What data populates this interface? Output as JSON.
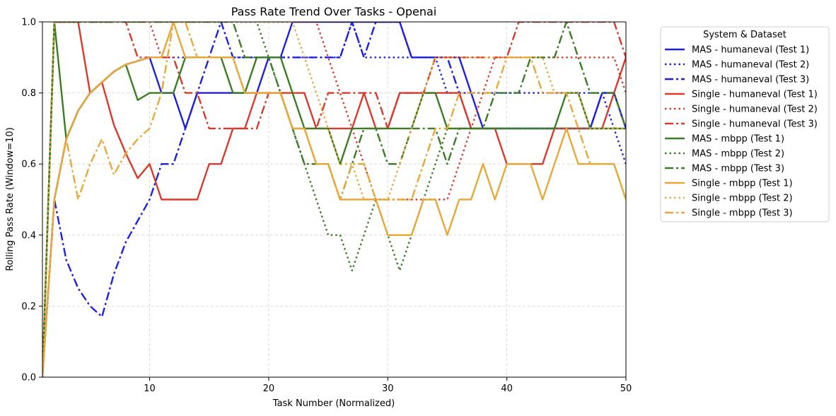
{
  "chart_data": {
    "type": "line",
    "title": "Pass Rate Trend Over Tasks - Openai",
    "xlabel": "Task Number (Normalized)",
    "ylabel": "Rolling Pass Rate (Window=10)",
    "xlim": [
      1,
      50
    ],
    "ylim": [
      0,
      1
    ],
    "xticks": [
      10,
      20,
      30,
      40,
      50
    ],
    "yticks": [
      0.0,
      0.2,
      0.4,
      0.6,
      0.8,
      1.0
    ],
    "ytick_labels": [
      "0.0",
      "0.2",
      "0.4",
      "0.6",
      "0.8",
      "1.0"
    ],
    "grid": true,
    "legend": {
      "title": "System & Dataset",
      "placement": "outside-right-top"
    },
    "x": [
      1,
      2,
      3,
      4,
      5,
      6,
      7,
      8,
      9,
      10,
      11,
      12,
      13,
      14,
      15,
      16,
      17,
      18,
      19,
      20,
      21,
      22,
      23,
      24,
      25,
      26,
      27,
      28,
      29,
      30,
      31,
      32,
      33,
      34,
      35,
      36,
      37,
      38,
      39,
      40,
      41,
      42,
      43,
      44,
      45,
      46,
      47,
      48,
      49,
      50
    ],
    "series": [
      {
        "name": "MAS - humaneval (Test 1)",
        "color": "#1f1fe0",
        "dash": "solid",
        "values": [
          0.0,
          0.5,
          0.67,
          0.75,
          0.8,
          0.83,
          0.86,
          0.88,
          0.89,
          0.9,
          0.8,
          0.8,
          0.7,
          0.8,
          0.8,
          0.8,
          0.8,
          0.8,
          0.8,
          0.9,
          0.9,
          1.0,
          1.0,
          1.0,
          1.0,
          1.0,
          1.0,
          1.0,
          1.0,
          1.0,
          1.0,
          0.9,
          0.9,
          0.9,
          0.9,
          0.9,
          0.8,
          0.7,
          0.7,
          0.7,
          0.7,
          0.7,
          0.7,
          0.7,
          0.7,
          0.7,
          0.7,
          0.8,
          0.8,
          0.7
        ]
      },
      {
        "name": "MAS - humaneval (Test 2)",
        "color": "#1f1fe0",
        "dash": "dot",
        "values": [
          0.0,
          0.5,
          0.67,
          0.75,
          0.8,
          0.83,
          0.86,
          0.88,
          0.89,
          0.9,
          0.9,
          0.9,
          0.9,
          0.9,
          0.9,
          0.9,
          0.9,
          0.9,
          0.9,
          0.9,
          0.9,
          0.9,
          0.9,
          0.9,
          0.9,
          0.9,
          1.0,
          0.9,
          0.9,
          0.9,
          0.9,
          0.9,
          0.9,
          0.9,
          0.8,
          0.8,
          0.8,
          0.8,
          0.8,
          0.8,
          0.8,
          0.8,
          0.8,
          0.8,
          0.8,
          0.8,
          0.8,
          0.8,
          0.7,
          0.6
        ]
      },
      {
        "name": "MAS - humaneval (Test 3)",
        "color": "#1f1fe0",
        "dash": "dashdot",
        "values": [
          0.0,
          0.5,
          0.33,
          0.25,
          0.2,
          0.17,
          0.29,
          0.38,
          0.44,
          0.5,
          0.6,
          0.6,
          0.7,
          0.8,
          0.9,
          1.0,
          0.9,
          0.9,
          0.9,
          0.9,
          0.9,
          0.9,
          0.9,
          0.9,
          0.9,
          0.9,
          1.0,
          0.9,
          1.0,
          1.0,
          1.0,
          0.9,
          0.9,
          0.9,
          0.9,
          0.8,
          0.7,
          0.7,
          0.7,
          0.7,
          0.7,
          0.7,
          0.7,
          0.7,
          0.7,
          0.7,
          0.7,
          0.8,
          0.8,
          0.7
        ]
      },
      {
        "name": "Single - humaneval (Test 1)",
        "color": "#d93a2b",
        "dash": "solid",
        "values": [
          0.0,
          1.0,
          1.0,
          1.0,
          0.8,
          0.83,
          0.71,
          0.63,
          0.56,
          0.6,
          0.5,
          0.5,
          0.5,
          0.5,
          0.6,
          0.6,
          0.7,
          0.7,
          0.8,
          0.8,
          0.8,
          0.8,
          0.8,
          0.7,
          0.7,
          0.7,
          0.7,
          0.8,
          0.7,
          0.7,
          0.8,
          0.8,
          0.8,
          0.8,
          0.8,
          0.8,
          0.7,
          0.7,
          0.7,
          0.6,
          0.6,
          0.6,
          0.6,
          0.7,
          0.7,
          0.7,
          0.7,
          0.7,
          0.8,
          0.9
        ]
      },
      {
        "name": "Single - humaneval (Test 2)",
        "color": "#d93a2b",
        "dash": "dot",
        "values": [
          0.0,
          1.0,
          1.0,
          1.0,
          1.0,
          1.0,
          1.0,
          1.0,
          1.0,
          1.0,
          0.9,
          1.0,
          1.0,
          1.0,
          1.0,
          1.0,
          1.0,
          1.0,
          1.0,
          1.0,
          1.0,
          1.0,
          1.0,
          1.0,
          0.9,
          0.8,
          0.7,
          0.6,
          0.5,
          0.5,
          0.5,
          0.5,
          0.5,
          0.5,
          0.5,
          0.6,
          0.7,
          0.8,
          0.9,
          0.9,
          0.9,
          0.9,
          0.9,
          0.9,
          0.9,
          0.9,
          0.9,
          0.9,
          0.9,
          0.8
        ]
      },
      {
        "name": "Single - humaneval (Test 3)",
        "color": "#d93a2b",
        "dash": "dashdot",
        "values": [
          0.0,
          1.0,
          1.0,
          1.0,
          1.0,
          1.0,
          1.0,
          1.0,
          0.9,
          0.9,
          0.9,
          0.9,
          0.8,
          0.8,
          0.7,
          0.7,
          0.7,
          0.7,
          0.7,
          0.8,
          0.8,
          0.7,
          0.7,
          0.7,
          0.8,
          0.8,
          0.8,
          0.8,
          0.8,
          0.7,
          0.8,
          0.8,
          0.8,
          0.9,
          0.9,
          0.9,
          0.9,
          0.9,
          0.9,
          0.9,
          1.0,
          1.0,
          1.0,
          1.0,
          1.0,
          1.0,
          1.0,
          1.0,
          1.0,
          0.9
        ]
      },
      {
        "name": "MAS - mbpp (Test 1)",
        "color": "#3a7d22",
        "dash": "solid",
        "values": [
          0.0,
          1.0,
          0.67,
          0.75,
          0.8,
          0.83,
          0.86,
          0.88,
          0.78,
          0.8,
          0.8,
          0.8,
          0.9,
          0.9,
          0.9,
          0.9,
          0.8,
          0.8,
          0.9,
          0.9,
          0.9,
          0.8,
          0.7,
          0.7,
          0.7,
          0.6,
          0.7,
          0.7,
          0.7,
          0.7,
          0.7,
          0.7,
          0.8,
          0.8,
          0.7,
          0.7,
          0.7,
          0.7,
          0.7,
          0.7,
          0.7,
          0.7,
          0.7,
          0.7,
          0.8,
          0.8,
          0.7,
          0.7,
          0.7,
          0.7
        ]
      },
      {
        "name": "MAS - mbpp (Test 2)",
        "color": "#3a7d22",
        "dash": "dot",
        "values": [
          0.0,
          1.0,
          1.0,
          1.0,
          1.0,
          1.0,
          1.0,
          1.0,
          1.0,
          1.0,
          1.0,
          1.0,
          1.0,
          1.0,
          1.0,
          1.0,
          1.0,
          1.0,
          1.0,
          0.9,
          0.8,
          0.7,
          0.6,
          0.5,
          0.4,
          0.4,
          0.3,
          0.4,
          0.5,
          0.4,
          0.3,
          0.4,
          0.5,
          0.6,
          0.7,
          0.7,
          0.7,
          0.7,
          0.7,
          0.7,
          0.7,
          0.7,
          0.7,
          0.7,
          0.7,
          0.7,
          0.7,
          0.7,
          0.7,
          0.7
        ]
      },
      {
        "name": "MAS - mbpp (Test 3)",
        "color": "#3a7d22",
        "dash": "dashdot",
        "values": [
          0.0,
          1.0,
          1.0,
          1.0,
          1.0,
          1.0,
          1.0,
          1.0,
          1.0,
          1.0,
          1.0,
          1.0,
          1.0,
          1.0,
          1.0,
          1.0,
          1.0,
          0.9,
          0.9,
          0.9,
          0.8,
          0.7,
          0.6,
          0.6,
          0.6,
          0.5,
          0.6,
          0.7,
          0.7,
          0.6,
          0.6,
          0.7,
          0.7,
          0.7,
          0.6,
          0.7,
          0.7,
          0.7,
          0.8,
          0.8,
          0.8,
          0.9,
          0.9,
          0.9,
          1.0,
          0.9,
          0.8,
          0.8,
          0.8,
          0.7
        ]
      },
      {
        "name": "Single - mbpp (Test 1)",
        "color": "#e8a838",
        "dash": "solid",
        "values": [
          0.0,
          0.5,
          0.67,
          0.75,
          0.8,
          0.83,
          0.86,
          0.88,
          0.89,
          0.9,
          0.9,
          1.0,
          0.9,
          0.9,
          0.9,
          0.9,
          0.9,
          0.8,
          0.8,
          0.8,
          0.8,
          0.7,
          0.7,
          0.6,
          0.6,
          0.5,
          0.5,
          0.5,
          0.5,
          0.4,
          0.4,
          0.4,
          0.5,
          0.5,
          0.4,
          0.5,
          0.5,
          0.6,
          0.5,
          0.6,
          0.6,
          0.6,
          0.5,
          0.6,
          0.7,
          0.6,
          0.6,
          0.6,
          0.6,
          0.5
        ]
      },
      {
        "name": "Single - mbpp (Test 2)",
        "color": "#e8a838",
        "dash": "dot",
        "values": [
          0.0,
          1.0,
          1.0,
          1.0,
          1.0,
          1.0,
          1.0,
          1.0,
          1.0,
          1.0,
          1.0,
          1.0,
          1.0,
          1.0,
          1.0,
          1.0,
          1.0,
          1.0,
          1.0,
          1.0,
          1.0,
          1.0,
          0.9,
          0.8,
          0.7,
          0.6,
          0.6,
          0.5,
          0.5,
          0.5,
          0.6,
          0.7,
          0.8,
          0.9,
          0.9,
          0.9,
          0.9,
          0.9,
          0.9,
          0.9,
          0.9,
          0.9,
          0.9,
          0.8,
          0.8,
          0.8,
          0.7,
          0.7,
          0.7,
          0.7
        ]
      },
      {
        "name": "Single - mbpp (Test 3)",
        "color": "#e8a838",
        "dash": "dashdot",
        "values": [
          0.0,
          0.5,
          0.67,
          0.5,
          0.6,
          0.67,
          0.57,
          0.63,
          0.67,
          0.7,
          0.8,
          1.0,
          1.0,
          0.9,
          0.9,
          0.9,
          0.9,
          0.8,
          0.8,
          0.8,
          0.8,
          0.7,
          0.7,
          0.6,
          0.6,
          0.5,
          0.6,
          0.6,
          0.5,
          0.5,
          0.5,
          0.5,
          0.6,
          0.7,
          0.7,
          0.8,
          0.8,
          0.8,
          0.8,
          0.9,
          0.9,
          0.9,
          0.8,
          0.8,
          0.8,
          0.7,
          0.6,
          0.6,
          0.6,
          0.5
        ]
      }
    ]
  }
}
